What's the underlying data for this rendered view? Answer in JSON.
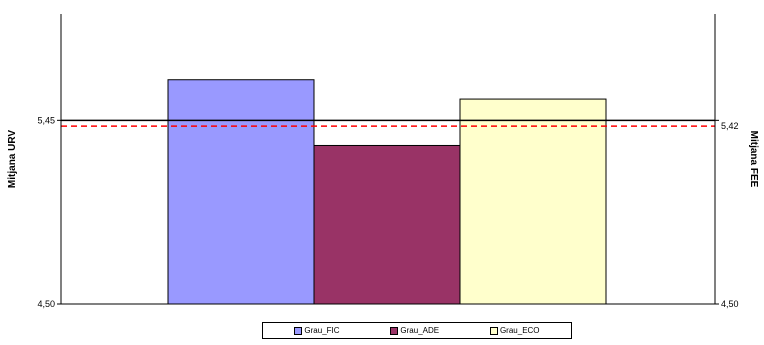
{
  "chart_data": {
    "type": "bar",
    "categories": [
      "Grau_FIC",
      "Grau_ADE",
      "Grau_ECO"
    ],
    "values": [
      5.66,
      5.32,
      5.56
    ],
    "colors": [
      "#9999ff",
      "#993366",
      "#ffffcc"
    ],
    "ylabel": "Mitjana URV",
    "y2label": "Mitjana FEE",
    "ylim": [
      4.5,
      6.0
    ],
    "y_ticks": [
      "4,50",
      "5,45"
    ],
    "y2_ticks": [
      "4,50",
      "5,42"
    ],
    "reference_lines": [
      {
        "value": 5.45,
        "style": "solid",
        "color": "#000000"
      },
      {
        "value": 5.42,
        "style": "dashed",
        "color": "#ff0000"
      }
    ],
    "legend": [
      "Grau_FIC",
      "Grau_ADE",
      "Grau_ECO"
    ],
    "legend_position": "bottom",
    "grid": false
  }
}
